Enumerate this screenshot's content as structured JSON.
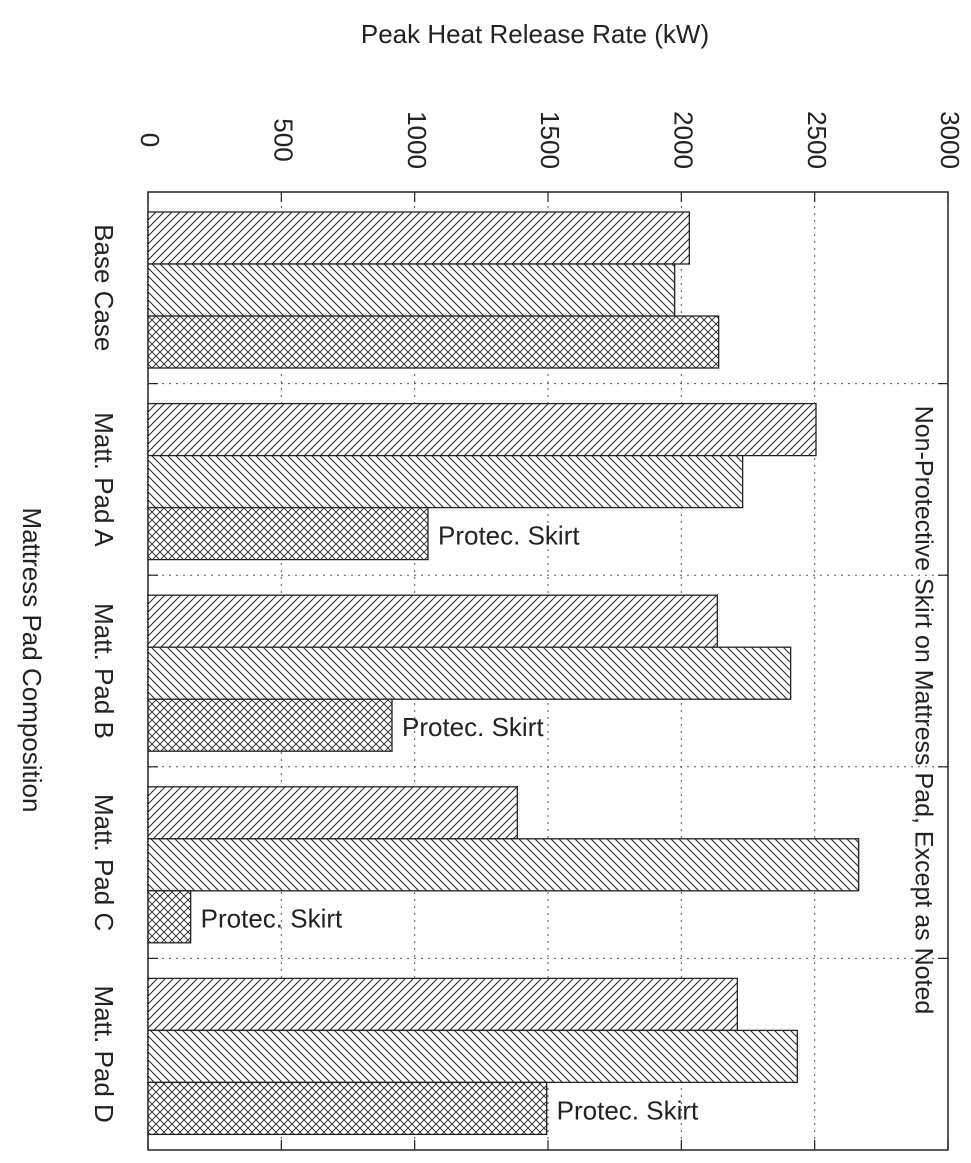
{
  "chart_data": {
    "type": "bar",
    "orientation": "horizontal",
    "xlabel": "Mattress Pad Composition",
    "ylabel": "Peak Heat Release Rate (kW)",
    "annotation": "Non-Protective Skirt on Mattress Pad, Except as Noted",
    "bar_annotations": [
      "Protec. Skirt",
      "Protec. Skirt",
      "Protec. Skirt",
      "Protec. Skirt"
    ],
    "categories": [
      "Base Case",
      "Matt. Pad A",
      "Matt. Pad B",
      "Matt. Pad C",
      "Matt. Pad D"
    ],
    "series": [
      {
        "color": "#222222",
        "pattern": "diagonal-up",
        "values": [
          2030,
          2505,
          2135,
          1385,
          2210
        ]
      },
      {
        "color": "#222222",
        "pattern": "diagonal-down",
        "values": [
          1975,
          2230,
          2410,
          2665,
          2435
        ]
      },
      {
        "color": "#222222",
        "pattern": "crosshatch",
        "values": [
          2140,
          1050,
          915,
          160,
          1495
        ]
      }
    ],
    "ylim": [
      0,
      3000
    ],
    "yticks": [
      0,
      500,
      1000,
      1500,
      2000,
      2500,
      3000
    ],
    "grid": true
  }
}
